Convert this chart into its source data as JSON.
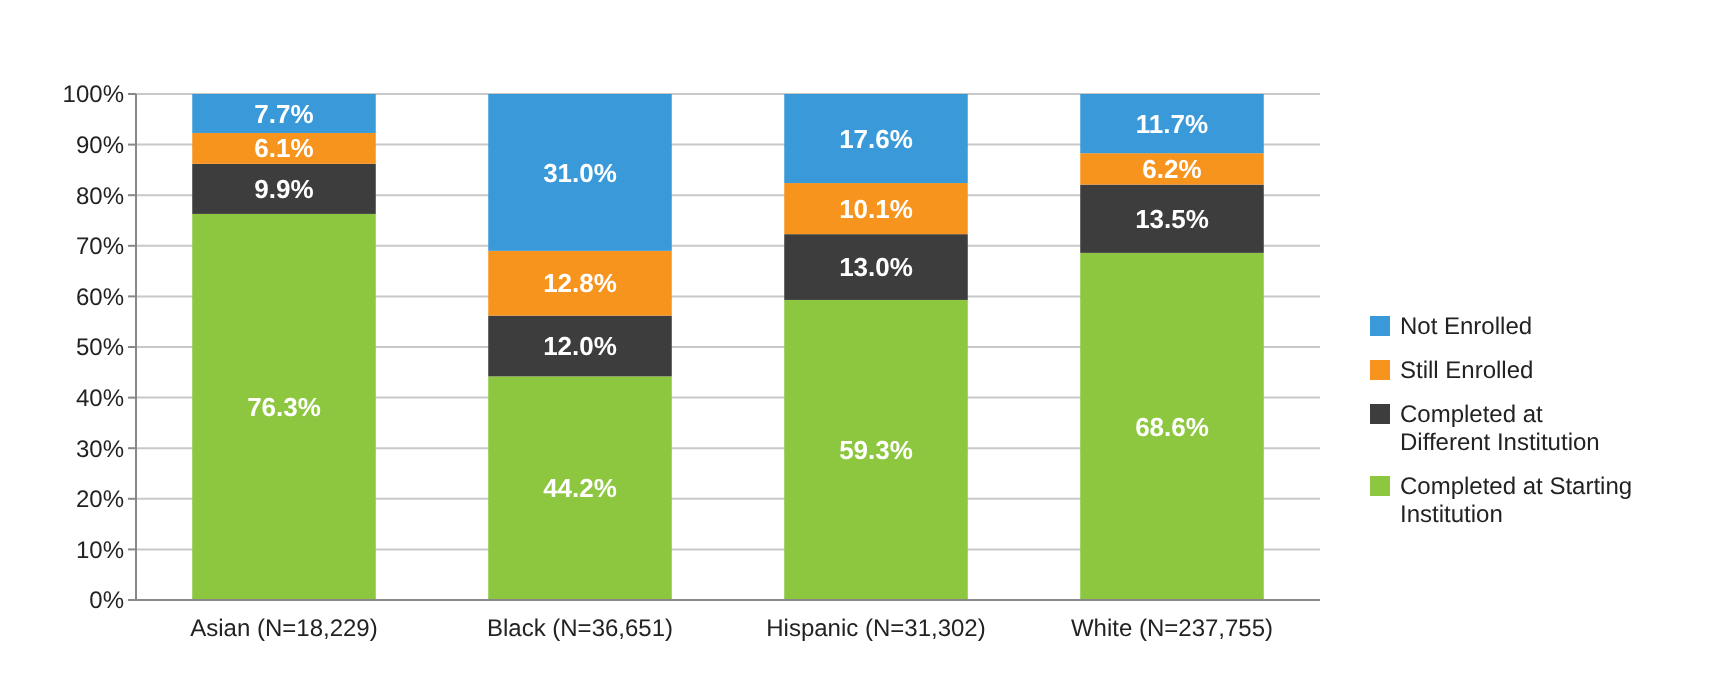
{
  "chart_data": {
    "type": "bar",
    "stacked": true,
    "categories": [
      "Asian (N=18,229)",
      "Black (N=36,651)",
      "Hispanic (N=31,302)",
      "White (N=237,755)"
    ],
    "series": [
      {
        "name": "Completed at Starting Institution",
        "color": "#8dc63f",
        "values": [
          76.3,
          44.2,
          59.3,
          68.6
        ],
        "value_labels": [
          "76.3%",
          "44.2%",
          "59.3%",
          "68.6%"
        ]
      },
      {
        "name": "Completed at Different Institution",
        "color": "#3d3d3d",
        "values": [
          9.9,
          12.0,
          13.0,
          13.5
        ],
        "value_labels": [
          "9.9%",
          "12.0%",
          "13.0%",
          "13.5%"
        ]
      },
      {
        "name": "Still Enrolled",
        "color": "#f7941d",
        "values": [
          6.1,
          12.8,
          10.1,
          6.2
        ],
        "value_labels": [
          "6.1%",
          "12.8%",
          "10.1%",
          "6.2%"
        ]
      },
      {
        "name": "Not Enrolled",
        "color": "#3a9ad9",
        "values": [
          7.7,
          31.0,
          17.6,
          11.7
        ],
        "value_labels": [
          "7.7%",
          "31.0%",
          "17.6%",
          "11.7%"
        ]
      }
    ],
    "ylim": [
      0,
      100
    ],
    "yticks": [
      {
        "value": 0,
        "label": "0%"
      },
      {
        "value": 10,
        "label": "10%"
      },
      {
        "value": 20,
        "label": "20%"
      },
      {
        "value": 30,
        "label": "30%"
      },
      {
        "value": 40,
        "label": "40%"
      },
      {
        "value": 50,
        "label": "50%"
      },
      {
        "value": 60,
        "label": "60%"
      },
      {
        "value": 70,
        "label": "70%"
      },
      {
        "value": 80,
        "label": "80%"
      },
      {
        "value": 90,
        "label": "90%"
      },
      {
        "value": 100,
        "label": "100%"
      }
    ],
    "grid": "y",
    "legend": "right"
  }
}
